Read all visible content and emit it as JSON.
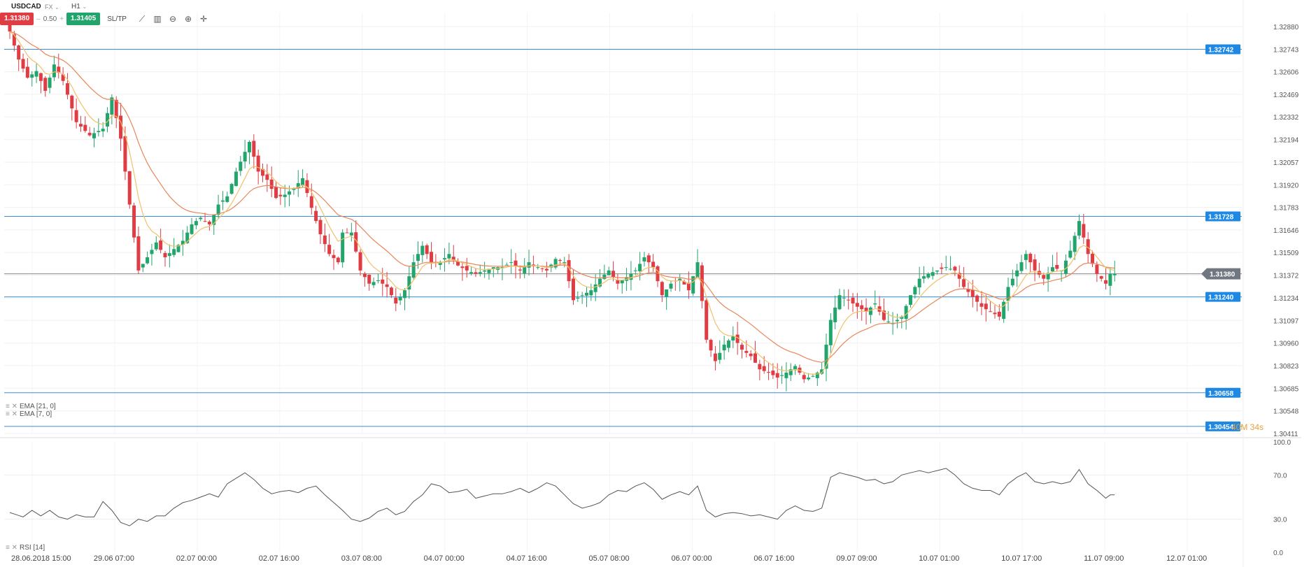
{
  "header": {
    "symbol": "USDCAD",
    "market": "FX",
    "timeframe": "H1",
    "sell_price": "1.31380",
    "spread": "0.50",
    "buy_price": "1.31405",
    "minus_label": "–",
    "plus_label": "+",
    "sltp_label": "SL/TP",
    "caret": "⌄"
  },
  "toolbar_icons": [
    "line-tool-icon",
    "chart-type-icon",
    "zoom-out-icon",
    "zoom-in-icon",
    "crosshair-icon"
  ],
  "indicators": [
    {
      "label": "EMA [21, 0]"
    },
    {
      "label": "EMA [7, 0]"
    }
  ],
  "rsi_label": "RSI [14]",
  "countdown": "40M 34s",
  "colors": {
    "bull": "#21a56c",
    "bear": "#e03c44",
    "ema21": "#e8865a",
    "ema7": "#f2c16a",
    "hline": "#3a8fd6",
    "price_tag": "#1e88e5",
    "current_tag": "#707780",
    "rsi": "#555555"
  },
  "chart_data": [
    {
      "type": "candlestick",
      "symbol": "USDCAD",
      "timeframe": "H1",
      "y_ticks": [
        "1.32880",
        "1.32743",
        "1.32606",
        "1.32469",
        "1.32332",
        "1.32194",
        "1.32057",
        "1.31920",
        "1.31783",
        "1.31646",
        "1.31509",
        "1.31372",
        "1.31234",
        "1.31097",
        "1.30960",
        "1.30823",
        "1.30685",
        "1.30548",
        "1.30411"
      ],
      "ylim": [
        1.30411,
        1.3288
      ],
      "x_ticks": [
        "28.06.2018 15:00",
        "29.06 07:00",
        "02.07 00:00",
        "02.07 16:00",
        "03.07 08:00",
        "04.07 00:00",
        "04.07 16:00",
        "05.07 08:00",
        "06.07 00:00",
        "06.07 16:00",
        "09.07 09:00",
        "10.07 01:00",
        "10.07 17:00",
        "11.07 09:00",
        "12.07 01:00"
      ],
      "levels": [
        {
          "value": 1.32742,
          "label": "1.32742"
        },
        {
          "value": 1.31728,
          "label": "1.31728"
        },
        {
          "value": 1.3124,
          "label": "1.31240"
        },
        {
          "value": 1.30658,
          "label": "1.30658"
        },
        {
          "value": 1.30454,
          "label": "1.30454"
        }
      ],
      "current_price": {
        "value": 1.3138,
        "label": "1.31380"
      },
      "series": [
        {
          "name": "EMA [21, 0]",
          "kind": "ema",
          "period": 21
        },
        {
          "name": "EMA [7, 0]",
          "kind": "ema",
          "period": 7
        }
      ],
      "close_path": [
        [
          0,
          1.3285
        ],
        [
          2,
          1.3268
        ],
        [
          4,
          1.3257
        ],
        [
          6,
          1.3261
        ],
        [
          8,
          1.3249
        ],
        [
          10,
          1.3265
        ],
        [
          12,
          1.3255
        ],
        [
          15,
          1.323
        ],
        [
          18,
          1.3222
        ],
        [
          21,
          1.3226
        ],
        [
          23,
          1.3245
        ],
        [
          25,
          1.322
        ],
        [
          27,
          1.318
        ],
        [
          29,
          1.314
        ],
        [
          31,
          1.3148
        ],
        [
          33,
          1.3157
        ],
        [
          35,
          1.3148
        ],
        [
          37,
          1.3153
        ],
        [
          39,
          1.3158
        ],
        [
          41,
          1.3168
        ],
        [
          43,
          1.3172
        ],
        [
          45,
          1.3168
        ],
        [
          47,
          1.318
        ],
        [
          49,
          1.3185
        ],
        [
          51,
          1.32
        ],
        [
          53,
          1.3212
        ],
        [
          54,
          1.3218
        ],
        [
          56,
          1.32
        ],
        [
          58,
          1.3195
        ],
        [
          60,
          1.3184
        ],
        [
          62,
          1.3186
        ],
        [
          64,
          1.319
        ],
        [
          66,
          1.3196
        ],
        [
          68,
          1.3178
        ],
        [
          70,
          1.3162
        ],
        [
          72,
          1.315
        ],
        [
          74,
          1.3145
        ],
        [
          75,
          1.3163
        ],
        [
          77,
          1.3163
        ],
        [
          79,
          1.314
        ],
        [
          81,
          1.3132
        ],
        [
          83,
          1.3134
        ],
        [
          85,
          1.313
        ],
        [
          87,
          1.312
        ],
        [
          89,
          1.3128
        ],
        [
          91,
          1.3145
        ],
        [
          93,
          1.3155
        ],
        [
          95,
          1.3145
        ],
        [
          97,
          1.3145
        ],
        [
          99,
          1.315
        ],
        [
          101,
          1.3143
        ],
        [
          103,
          1.314
        ],
        [
          105,
          1.3138
        ],
        [
          107,
          1.314
        ],
        [
          109,
          1.3142
        ],
        [
          111,
          1.3142
        ],
        [
          113,
          1.3145
        ],
        [
          115,
          1.314
        ],
        [
          117,
          1.3145
        ],
        [
          119,
          1.3142
        ],
        [
          121,
          1.314
        ],
        [
          123,
          1.3147
        ],
        [
          125,
          1.3145
        ],
        [
          127,
          1.3122
        ],
        [
          129,
          1.3125
        ],
        [
          131,
          1.3128
        ],
        [
          133,
          1.3135
        ],
        [
          135,
          1.314
        ],
        [
          137,
          1.3132
        ],
        [
          139,
          1.3136
        ],
        [
          141,
          1.314
        ],
        [
          143,
          1.3148
        ],
        [
          145,
          1.3142
        ],
        [
          147,
          1.3125
        ],
        [
          149,
          1.3132
        ],
        [
          151,
          1.3135
        ],
        [
          153,
          1.3128
        ],
        [
          155,
          1.3145
        ],
        [
          157,
          1.3098
        ],
        [
          159,
          1.3085
        ],
        [
          161,
          1.3095
        ],
        [
          163,
          1.31
        ],
        [
          165,
          1.3092
        ],
        [
          167,
          1.3088
        ],
        [
          169,
          1.308
        ],
        [
          171,
          1.3078
        ],
        [
          173,
          1.3075
        ],
        [
          175,
          1.3078
        ],
        [
          177,
          1.3082
        ],
        [
          179,
          1.3074
        ],
        [
          181,
          1.3076
        ],
        [
          183,
          1.308
        ],
        [
          185,
          1.311
        ],
        [
          187,
          1.3125
        ],
        [
          189,
          1.3122
        ],
        [
          191,
          1.3118
        ],
        [
          193,
          1.3115
        ],
        [
          195,
          1.312
        ],
        [
          197,
          1.311
        ],
        [
          199,
          1.3108
        ],
        [
          201,
          1.3112
        ],
        [
          203,
          1.3125
        ],
        [
          205,
          1.3135
        ],
        [
          207,
          1.3138
        ],
        [
          209,
          1.314
        ],
        [
          211,
          1.3142
        ],
        [
          213,
          1.314
        ],
        [
          215,
          1.313
        ],
        [
          217,
          1.3124
        ],
        [
          219,
          1.3118
        ],
        [
          221,
          1.3115
        ],
        [
          223,
          1.3112
        ],
        [
          225,
          1.313
        ],
        [
          227,
          1.314
        ],
        [
          229,
          1.315
        ],
        [
          231,
          1.314
        ],
        [
          233,
          1.3135
        ],
        [
          235,
          1.3142
        ],
        [
          237,
          1.314
        ],
        [
          239,
          1.3152
        ],
        [
          241,
          1.317
        ],
        [
          243,
          1.315
        ],
        [
          245,
          1.3138
        ],
        [
          247,
          1.3132
        ],
        [
          248,
          1.3138
        ]
      ]
    },
    {
      "type": "line",
      "name": "RSI [14]",
      "y_ticks": [
        "100.0",
        "70.0",
        "30.0",
        "0.0"
      ],
      "ylim": [
        0,
        100
      ],
      "values_path": [
        [
          0,
          36
        ],
        [
          3,
          32
        ],
        [
          5,
          38
        ],
        [
          7,
          33
        ],
        [
          9,
          38
        ],
        [
          11,
          32
        ],
        [
          13,
          30
        ],
        [
          15,
          34
        ],
        [
          17,
          32
        ],
        [
          19,
          32
        ],
        [
          21,
          46
        ],
        [
          23,
          38
        ],
        [
          25,
          27
        ],
        [
          27,
          24
        ],
        [
          29,
          30
        ],
        [
          31,
          28
        ],
        [
          33,
          33
        ],
        [
          35,
          33
        ],
        [
          37,
          40
        ],
        [
          39,
          45
        ],
        [
          41,
          47
        ],
        [
          43,
          50
        ],
        [
          45,
          53
        ],
        [
          47,
          50
        ],
        [
          49,
          62
        ],
        [
          51,
          67
        ],
        [
          53,
          72
        ],
        [
          55,
          66
        ],
        [
          57,
          58
        ],
        [
          59,
          53
        ],
        [
          61,
          55
        ],
        [
          63,
          56
        ],
        [
          65,
          54
        ],
        [
          67,
          58
        ],
        [
          69,
          60
        ],
        [
          71,
          52
        ],
        [
          73,
          45
        ],
        [
          75,
          38
        ],
        [
          77,
          30
        ],
        [
          79,
          28
        ],
        [
          81,
          31
        ],
        [
          83,
          37
        ],
        [
          85,
          40
        ],
        [
          87,
          34
        ],
        [
          89,
          37
        ],
        [
          91,
          46
        ],
        [
          93,
          52
        ],
        [
          95,
          62
        ],
        [
          97,
          60
        ],
        [
          99,
          54
        ],
        [
          101,
          55
        ],
        [
          103,
          57
        ],
        [
          105,
          49
        ],
        [
          107,
          51
        ],
        [
          109,
          53
        ],
        [
          111,
          53
        ],
        [
          113,
          55
        ],
        [
          115,
          58
        ],
        [
          117,
          54
        ],
        [
          119,
          58
        ],
        [
          121,
          63
        ],
        [
          123,
          60
        ],
        [
          125,
          52
        ],
        [
          127,
          44
        ],
        [
          129,
          40
        ],
        [
          131,
          42
        ],
        [
          133,
          45
        ],
        [
          135,
          52
        ],
        [
          137,
          56
        ],
        [
          139,
          55
        ],
        [
          141,
          60
        ],
        [
          143,
          63
        ],
        [
          145,
          57
        ],
        [
          147,
          48
        ],
        [
          149,
          52
        ],
        [
          151,
          55
        ],
        [
          153,
          52
        ],
        [
          155,
          60
        ],
        [
          157,
          38
        ],
        [
          159,
          32
        ],
        [
          161,
          35
        ],
        [
          163,
          36
        ],
        [
          165,
          35
        ],
        [
          167,
          33
        ],
        [
          169,
          34
        ],
        [
          171,
          32
        ],
        [
          173,
          30
        ],
        [
          175,
          38
        ],
        [
          177,
          42
        ],
        [
          179,
          38
        ],
        [
          181,
          37
        ],
        [
          183,
          40
        ],
        [
          185,
          68
        ],
        [
          187,
          72
        ],
        [
          189,
          70
        ],
        [
          191,
          68
        ],
        [
          193,
          65
        ],
        [
          195,
          66
        ],
        [
          197,
          62
        ],
        [
          199,
          64
        ],
        [
          201,
          70
        ],
        [
          203,
          72
        ],
        [
          205,
          74
        ],
        [
          207,
          72
        ],
        [
          209,
          74
        ],
        [
          211,
          76
        ],
        [
          213,
          70
        ],
        [
          215,
          62
        ],
        [
          217,
          58
        ],
        [
          219,
          56
        ],
        [
          221,
          56
        ],
        [
          223,
          52
        ],
        [
          225,
          62
        ],
        [
          227,
          68
        ],
        [
          229,
          72
        ],
        [
          231,
          64
        ],
        [
          233,
          62
        ],
        [
          235,
          64
        ],
        [
          237,
          62
        ],
        [
          239,
          64
        ],
        [
          241,
          75
        ],
        [
          243,
          62
        ],
        [
          245,
          56
        ],
        [
          247,
          49
        ],
        [
          248,
          52
        ]
      ]
    }
  ]
}
